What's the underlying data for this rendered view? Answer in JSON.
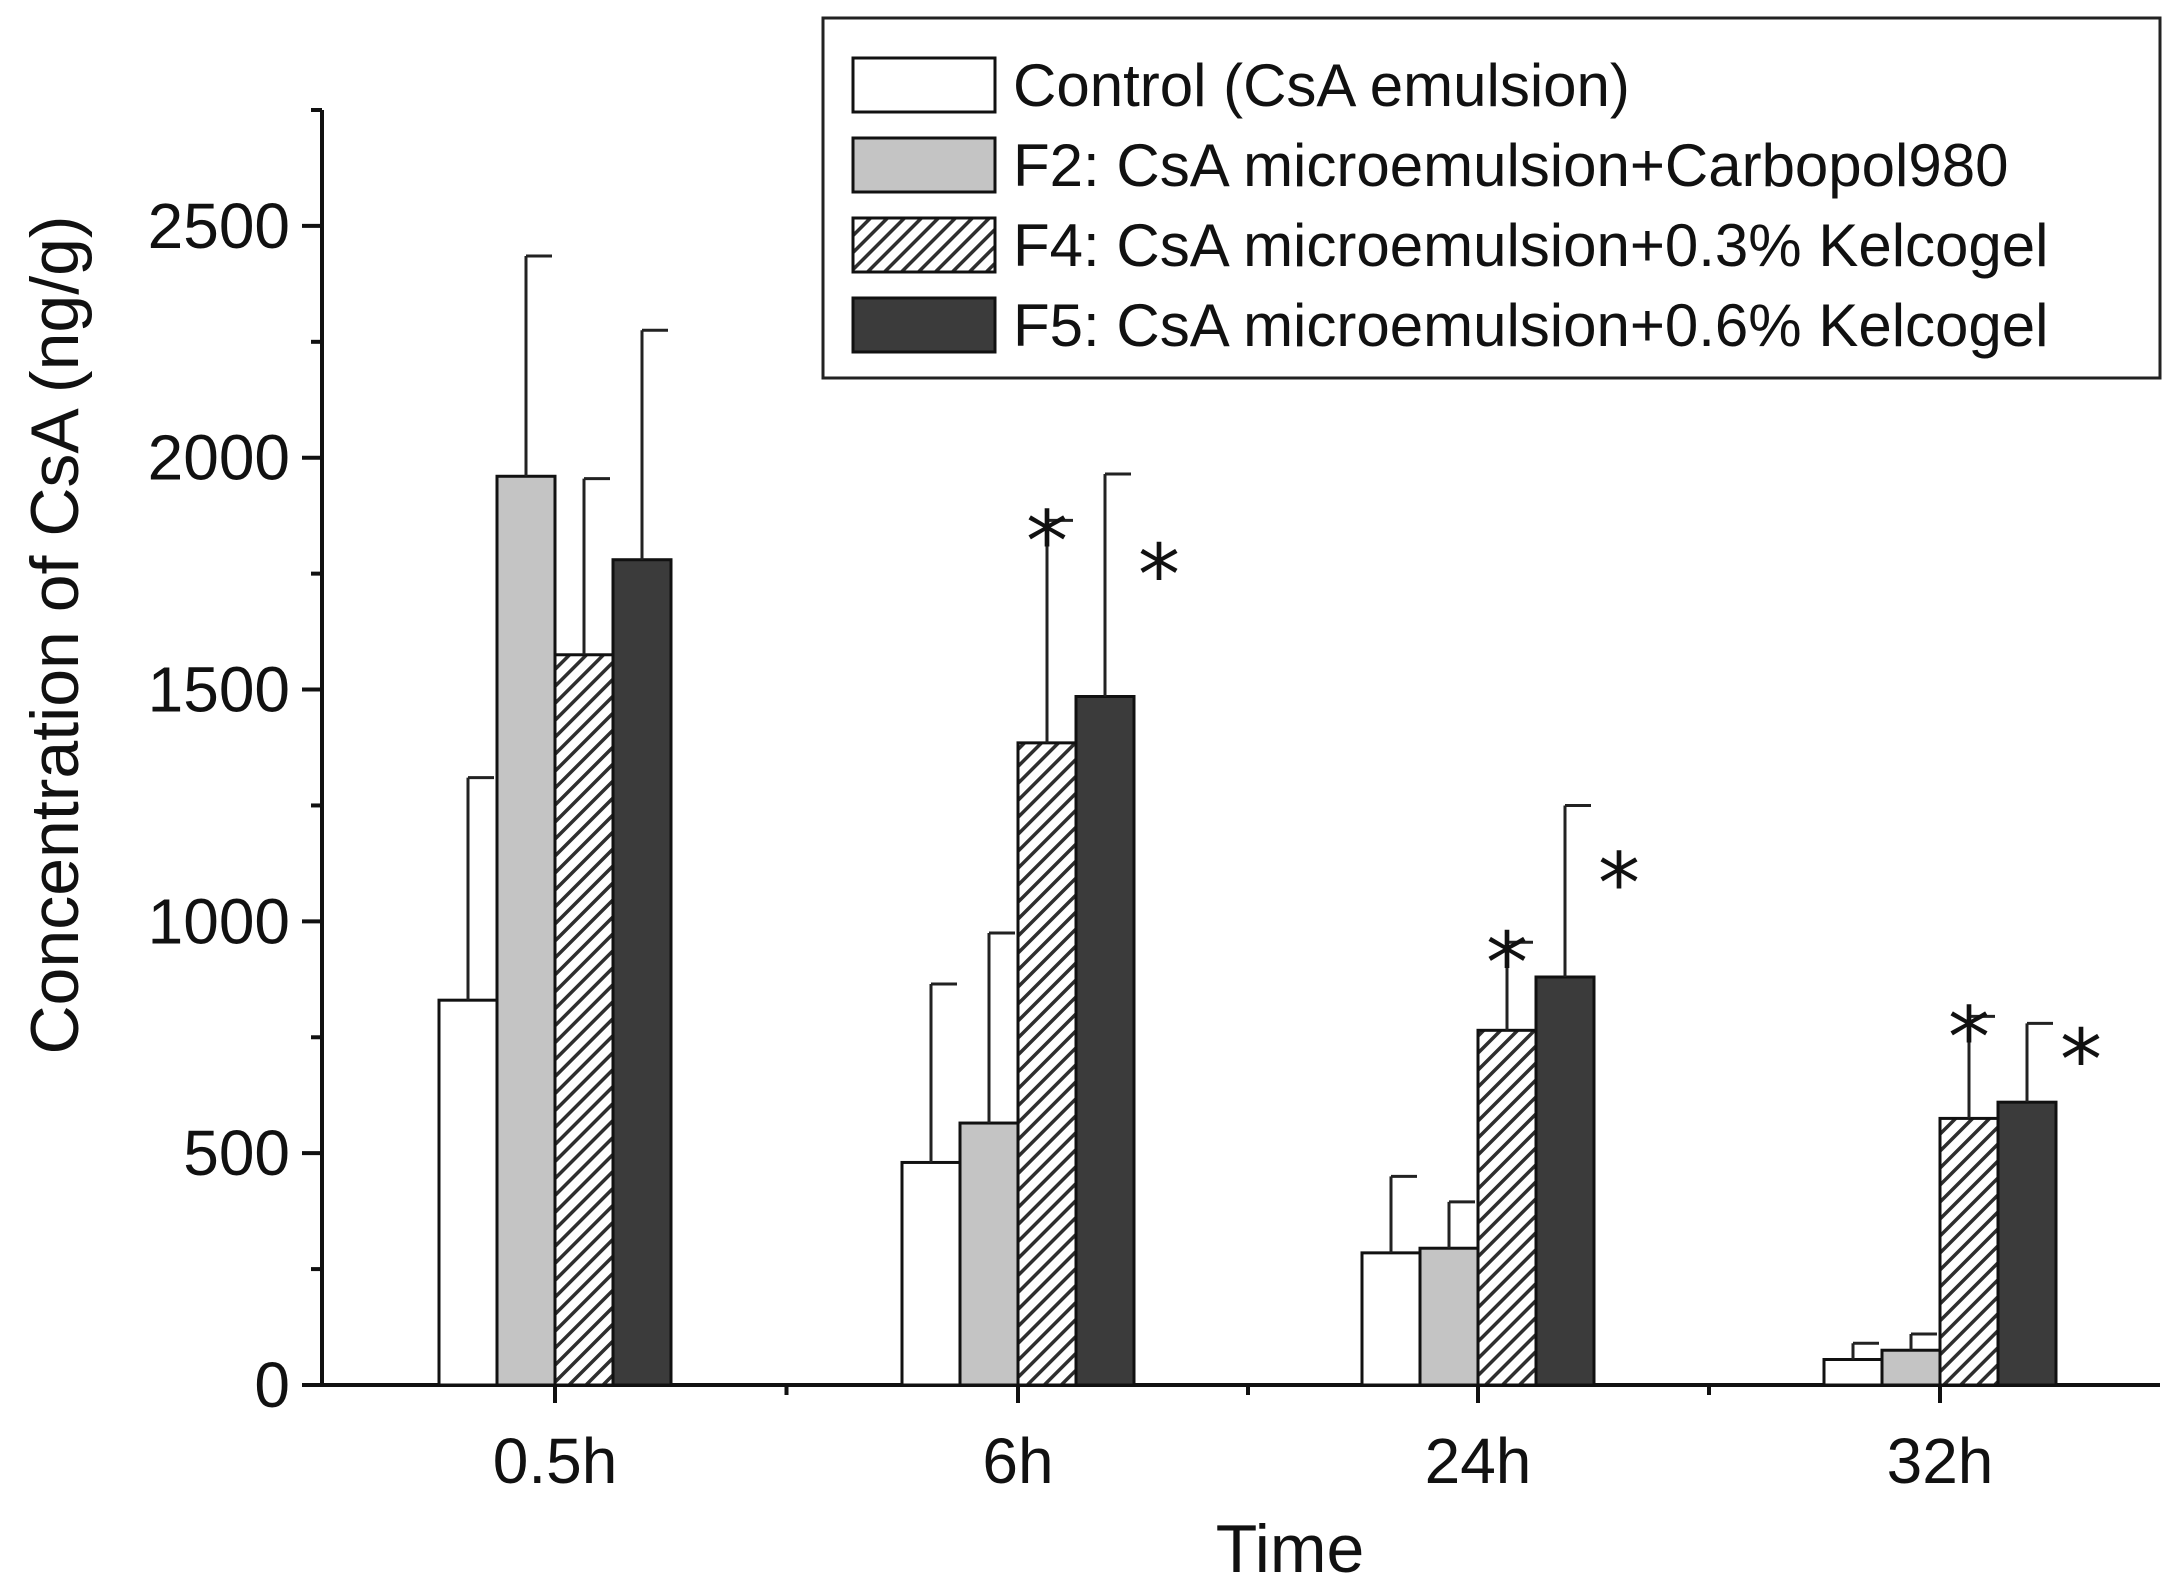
{
  "chart_data": {
    "type": "bar",
    "title": "",
    "xlabel": "Time",
    "ylabel": "Concentration of CsA (ng/g)",
    "ylim": [
      0,
      2750
    ],
    "yticks": [
      0,
      500,
      1000,
      1500,
      2000,
      2500
    ],
    "categories": [
      "0.5h",
      "6h",
      "24h",
      "32h"
    ],
    "legend_position": "top-right",
    "series": [
      {
        "name": "Control (CsA emulsion)",
        "fill": "white",
        "color": "#ffffff",
        "values": [
          830,
          480,
          285,
          55
        ],
        "errors": [
          480,
          385,
          165,
          35
        ],
        "significant": [
          false,
          false,
          false,
          false
        ]
      },
      {
        "name": "F2: CsA microemulsion+Carbopol980",
        "fill": "gray",
        "color": "#c4c4c4",
        "values": [
          1960,
          565,
          295,
          75
        ],
        "errors": [
          475,
          410,
          100,
          35
        ],
        "significant": [
          false,
          false,
          false,
          false
        ]
      },
      {
        "name": "F4: CsA microemulsion+0.3% Kelcogel",
        "fill": "hatched",
        "color": "#555555",
        "values": [
          1575,
          1385,
          765,
          575
        ],
        "errors": [
          380,
          480,
          190,
          220
        ],
        "significant": [
          false,
          true,
          true,
          true
        ]
      },
      {
        "name": "F5: CsA microemulsion+0.6% Kelcogel",
        "fill": "dark",
        "color": "#3b3b3b",
        "values": [
          1780,
          1485,
          880,
          610
        ],
        "errors": [
          495,
          480,
          370,
          170
        ],
        "significant": [
          false,
          true,
          true,
          true
        ]
      }
    ],
    "significance_marker": "*"
  }
}
